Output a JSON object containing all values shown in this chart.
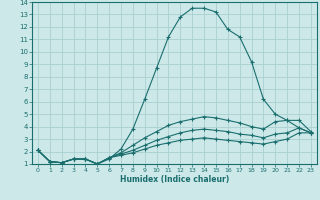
{
  "xlabel": "Humidex (Indice chaleur)",
  "bg_color": "#cce8e8",
  "line_color": "#1a6e6e",
  "grid_color": "#aad0d0",
  "xlim": [
    -0.5,
    23.5
  ],
  "ylim": [
    1,
    14
  ],
  "xticks": [
    0,
    1,
    2,
    3,
    4,
    5,
    6,
    7,
    8,
    9,
    10,
    11,
    12,
    13,
    14,
    15,
    16,
    17,
    18,
    19,
    20,
    21,
    22,
    23
  ],
  "yticks": [
    1,
    2,
    3,
    4,
    5,
    6,
    7,
    8,
    9,
    10,
    11,
    12,
    13,
    14
  ],
  "curves": [
    {
      "x": [
        0,
        1,
        2,
        3,
        4,
        5,
        6,
        7,
        8,
        9,
        10,
        11,
        12,
        13,
        14,
        15,
        16,
        17,
        18,
        19,
        20,
        21,
        22,
        23
      ],
      "y": [
        2.1,
        1.2,
        1.1,
        1.4,
        1.4,
        1.0,
        1.4,
        2.2,
        3.8,
        6.2,
        8.7,
        11.2,
        12.8,
        13.5,
        13.5,
        13.2,
        11.8,
        11.2,
        9.2,
        6.2,
        5.0,
        4.5,
        3.9,
        3.5
      ]
    },
    {
      "x": [
        0,
        1,
        2,
        3,
        4,
        5,
        6,
        7,
        8,
        9,
        10,
        11,
        12,
        13,
        14,
        15,
        16,
        17,
        18,
        19,
        20,
        21,
        22,
        23
      ],
      "y": [
        2.1,
        1.2,
        1.1,
        1.4,
        1.4,
        1.0,
        1.5,
        1.9,
        2.5,
        3.1,
        3.6,
        4.1,
        4.4,
        4.6,
        4.8,
        4.7,
        4.5,
        4.3,
        4.0,
        3.8,
        4.4,
        4.5,
        4.5,
        3.6
      ]
    },
    {
      "x": [
        0,
        1,
        2,
        3,
        4,
        5,
        6,
        7,
        8,
        9,
        10,
        11,
        12,
        13,
        14,
        15,
        16,
        17,
        18,
        19,
        20,
        21,
        22,
        23
      ],
      "y": [
        2.1,
        1.2,
        1.1,
        1.4,
        1.4,
        1.0,
        1.5,
        1.8,
        2.1,
        2.5,
        2.9,
        3.2,
        3.5,
        3.7,
        3.8,
        3.7,
        3.6,
        3.4,
        3.3,
        3.1,
        3.4,
        3.5,
        3.9,
        3.5
      ]
    },
    {
      "x": [
        0,
        1,
        2,
        3,
        4,
        5,
        6,
        7,
        8,
        9,
        10,
        11,
        12,
        13,
        14,
        15,
        16,
        17,
        18,
        19,
        20,
        21,
        22,
        23
      ],
      "y": [
        2.1,
        1.2,
        1.1,
        1.4,
        1.4,
        1.0,
        1.5,
        1.7,
        1.9,
        2.2,
        2.5,
        2.7,
        2.9,
        3.0,
        3.1,
        3.0,
        2.9,
        2.8,
        2.7,
        2.6,
        2.8,
        3.0,
        3.5,
        3.5
      ]
    }
  ]
}
